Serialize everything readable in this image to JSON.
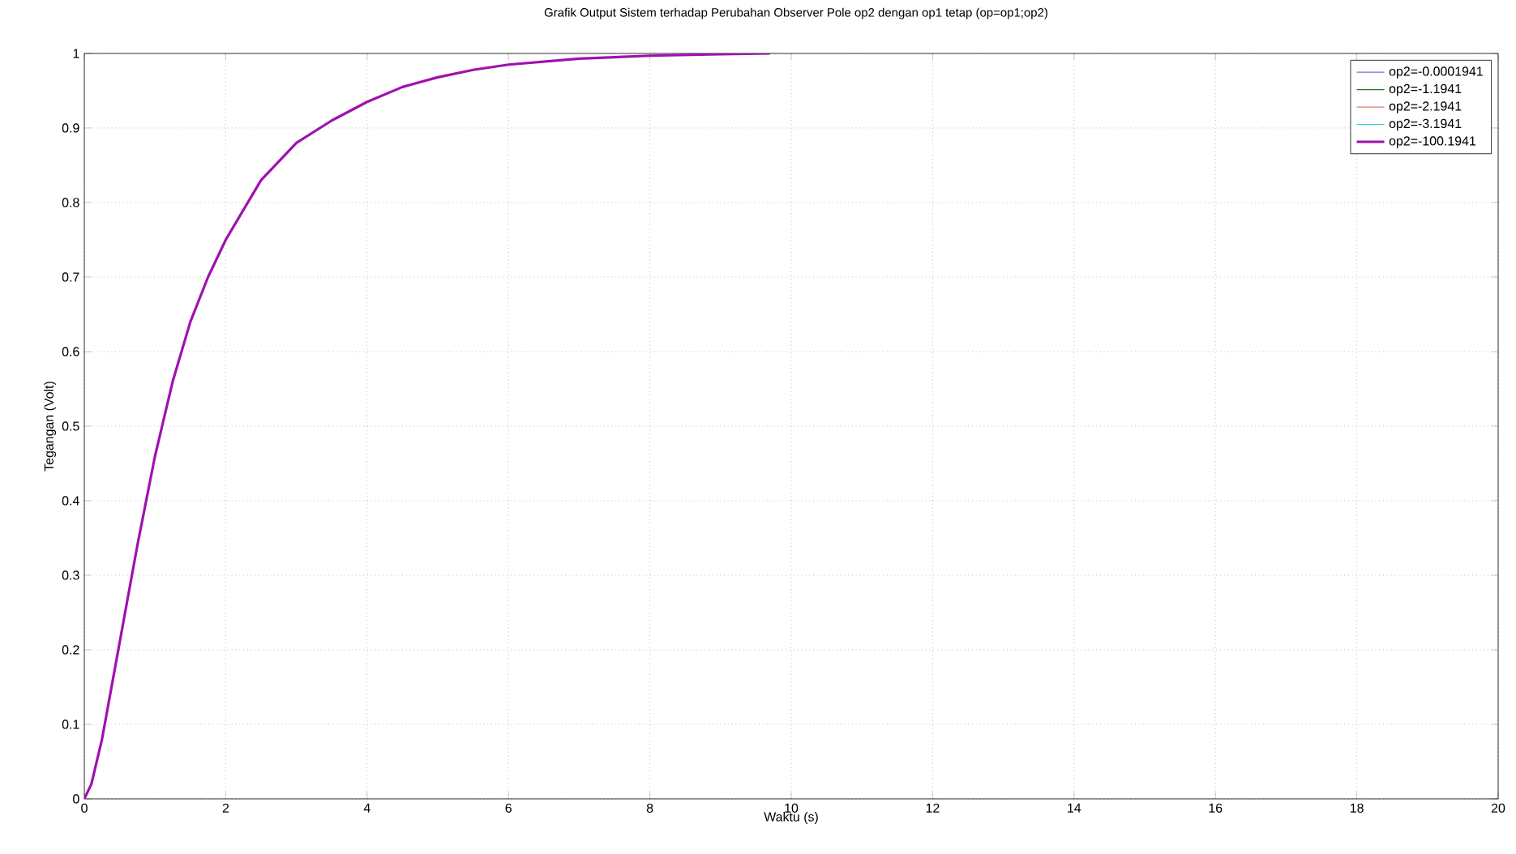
{
  "chart_data": {
    "type": "line",
    "title": "Grafik Output Sistem terhadap Perubahan Observer Pole op2 dengan op1 tetap (op=op1;op2)",
    "xlabel": "Waktu (s)",
    "ylabel": "Tegangan (Volt)",
    "x": [
      0,
      0.1,
      0.25,
      0.5,
      0.75,
      1,
      1.25,
      1.5,
      1.75,
      2,
      2.25,
      2.5,
      3,
      3.5,
      4,
      4.5,
      5,
      5.5,
      6,
      7,
      8,
      9,
      9.7
    ],
    "series": [
      {
        "name": "op2=-0.0001941",
        "color": "#7f6fcf",
        "values": [
          null,
          null,
          null,
          null,
          null,
          null,
          null,
          null,
          null,
          null,
          null,
          null,
          null,
          null,
          null,
          null,
          null,
          null,
          null,
          null,
          null,
          null,
          null
        ]
      },
      {
        "name": "op2=-1.1941",
        "color": "#1f7a1f",
        "values": [
          null,
          null,
          null,
          null,
          null,
          null,
          null,
          null,
          null,
          null,
          null,
          null,
          null,
          null,
          null,
          null,
          null,
          null,
          null,
          null,
          null,
          null,
          null
        ]
      },
      {
        "name": "op2=-2.1941",
        "color": "#d08070",
        "values": [
          null,
          null,
          null,
          null,
          null,
          null,
          null,
          null,
          null,
          null,
          null,
          null,
          null,
          null,
          null,
          null,
          null,
          null,
          null,
          null,
          null,
          null,
          null
        ]
      },
      {
        "name": "op2=-3.1941",
        "color": "#40d0d0",
        "values": [
          null,
          null,
          null,
          null,
          null,
          null,
          null,
          null,
          null,
          null,
          null,
          null,
          null,
          null,
          null,
          null,
          null,
          null,
          null,
          null,
          null,
          null,
          null
        ]
      },
      {
        "name": "op2=-100.1941",
        "color": "#a010b0",
        "values": [
          0,
          0.02,
          0.08,
          0.21,
          0.34,
          0.46,
          0.56,
          0.64,
          0.7,
          0.75,
          0.79,
          0.83,
          0.88,
          0.91,
          0.935,
          0.955,
          0.968,
          0.978,
          0.985,
          0.993,
          0.997,
          0.999,
          1.0
        ]
      }
    ],
    "xlim": [
      0,
      20
    ],
    "xticks": [
      0,
      2,
      4,
      6,
      8,
      10,
      12,
      14,
      16,
      18,
      20
    ],
    "ylim": [
      0,
      1
    ],
    "yticks": [
      0,
      0.1,
      0.2,
      0.3,
      0.4,
      0.5,
      0.6,
      0.7,
      0.8,
      0.9,
      1
    ],
    "grid": true,
    "legend": "top right",
    "line_style": "solid",
    "marker": "none"
  }
}
